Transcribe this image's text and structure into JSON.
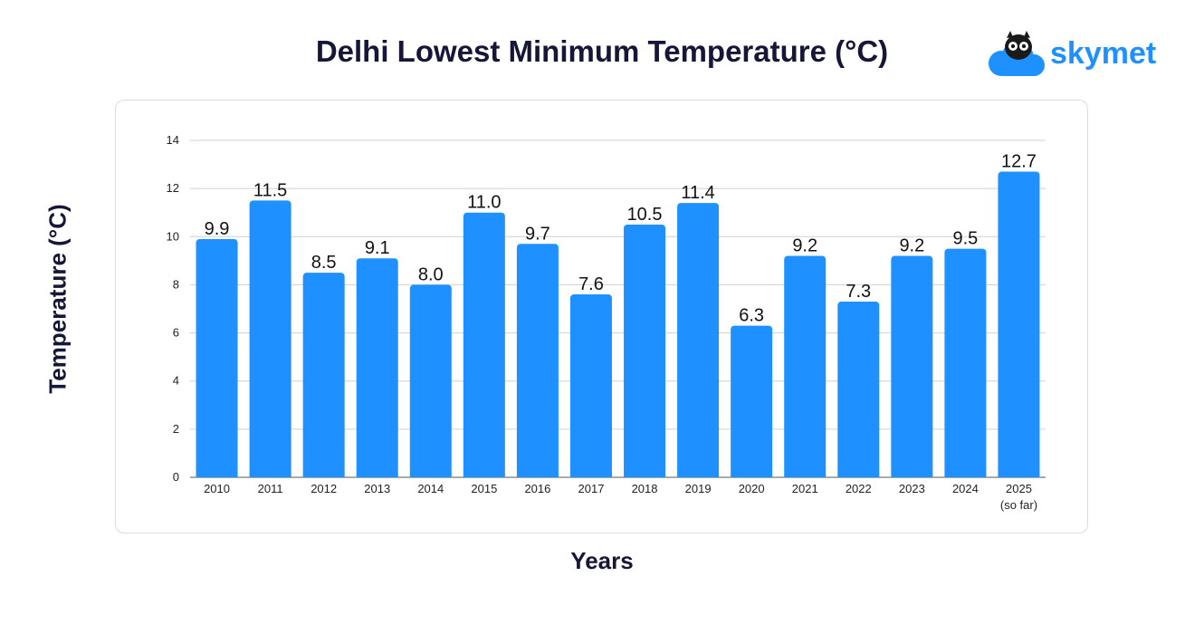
{
  "chart_data": {
    "type": "bar",
    "title": "Delhi Lowest Minimum Temperature (°C)",
    "xlabel": "Years",
    "ylabel": "Temperature (°C)",
    "categories": [
      "2010",
      "2011",
      "2012",
      "2013",
      "2014",
      "2015",
      "2016",
      "2017",
      "2018",
      "2019",
      "2020",
      "2021",
      "2022",
      "2023",
      "2024",
      "2025"
    ],
    "category_sublabels": [
      "",
      "",
      "",
      "",
      "",
      "",
      "",
      "",
      "",
      "",
      "",
      "",
      "",
      "",
      "",
      "(so far)"
    ],
    "values": [
      9.9,
      11.5,
      8.5,
      9.1,
      8.0,
      11.0,
      9.7,
      7.6,
      10.5,
      11.4,
      6.3,
      9.2,
      7.3,
      9.2,
      9.5,
      12.7
    ],
    "value_labels": [
      "9.9",
      "11.5",
      "8.5",
      "9.1",
      "8.0",
      "11.0",
      "9.7",
      "7.6",
      "10.5",
      "11.4",
      "6.3",
      "9.2",
      "7.3",
      "9.2",
      "9.5",
      "12.7"
    ],
    "ylim": [
      0,
      14
    ],
    "yticks": [
      0,
      2,
      4,
      6,
      8,
      10,
      12,
      14
    ],
    "grid": true,
    "bar_color": "#1e90ff"
  },
  "brand": {
    "name": "skymet",
    "logo_icon": "owl-on-cloud-icon",
    "color": "#1e90ff"
  }
}
